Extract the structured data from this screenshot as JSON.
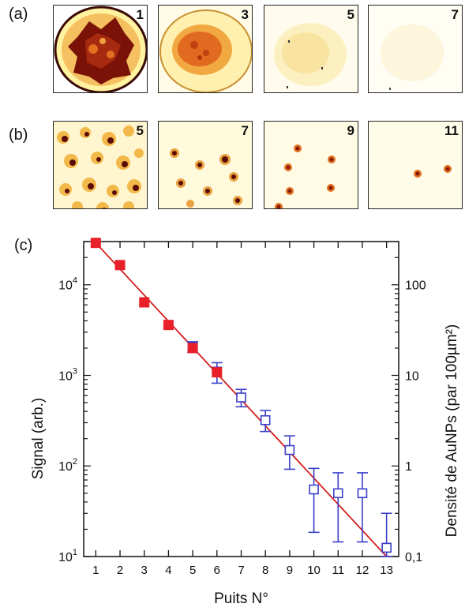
{
  "panel_labels": {
    "a": "(a)",
    "b": "(b)",
    "c": "(c)"
  },
  "row_a": [
    {
      "label": "1"
    },
    {
      "label": "3"
    },
    {
      "label": "5"
    },
    {
      "label": "7"
    }
  ],
  "row_b": [
    {
      "label": "5"
    },
    {
      "label": "7"
    },
    {
      "label": "9"
    },
    {
      "label": "11"
    }
  ],
  "colors": {
    "filled": "#e8202a",
    "open": "#3b3fc8",
    "fit": "#d42020",
    "heat_dark": "#5a0c08",
    "heat_mid": "#d26a18",
    "heat_light": "#fff3c4"
  },
  "chart_data": {
    "type": "scatter",
    "xlabel": "Puits N°",
    "ylabel": "Signal (arb.)",
    "y2label": "Densité de AuNPs (par 100µm²)",
    "x_ticks": [
      1,
      2,
      3,
      4,
      5,
      6,
      7,
      8,
      9,
      10,
      11,
      12,
      13
    ],
    "y_scale": "log",
    "ylim": [
      10,
      30000
    ],
    "xlim": [
      0.5,
      13.5
    ],
    "y_ticks": [
      {
        "value": 10,
        "base": "10",
        "exp": "1"
      },
      {
        "value": 100,
        "base": "10",
        "exp": "2"
      },
      {
        "value": 1000,
        "base": "10",
        "exp": "3"
      },
      {
        "value": 10000,
        "base": "10",
        "exp": "4"
      }
    ],
    "y2_scale": "log",
    "y2lim": [
      0.1,
      300
    ],
    "y2_ticks": [
      {
        "value": 0.1,
        "label": "0,1"
      },
      {
        "value": 1,
        "label": "1"
      },
      {
        "value": 10,
        "label": "10"
      },
      {
        "value": 100,
        "label": "100"
      }
    ],
    "series": [
      {
        "marker": "filled-square",
        "x": [
          1,
          2,
          3,
          4,
          5,
          6
        ],
        "y": [
          29000,
          16500,
          6400,
          3600,
          2000,
          1080
        ]
      },
      {
        "marker": "open-square",
        "x": [
          5,
          6,
          7,
          8,
          9,
          10,
          11,
          12,
          13
        ],
        "y": [
          2050,
          1100,
          570,
          320,
          150,
          55,
          50,
          50,
          12.5
        ],
        "err_low": [
          1800,
          820,
          450,
          240,
          92,
          18.5,
          14.5,
          14.5,
          10
        ],
        "err_high": [
          2350,
          1380,
          700,
          410,
          215,
          94,
          84,
          84,
          30
        ]
      },
      {
        "marker": "fit-line",
        "x": [
          1,
          13
        ],
        "y": [
          29000,
          10
        ]
      }
    ]
  }
}
